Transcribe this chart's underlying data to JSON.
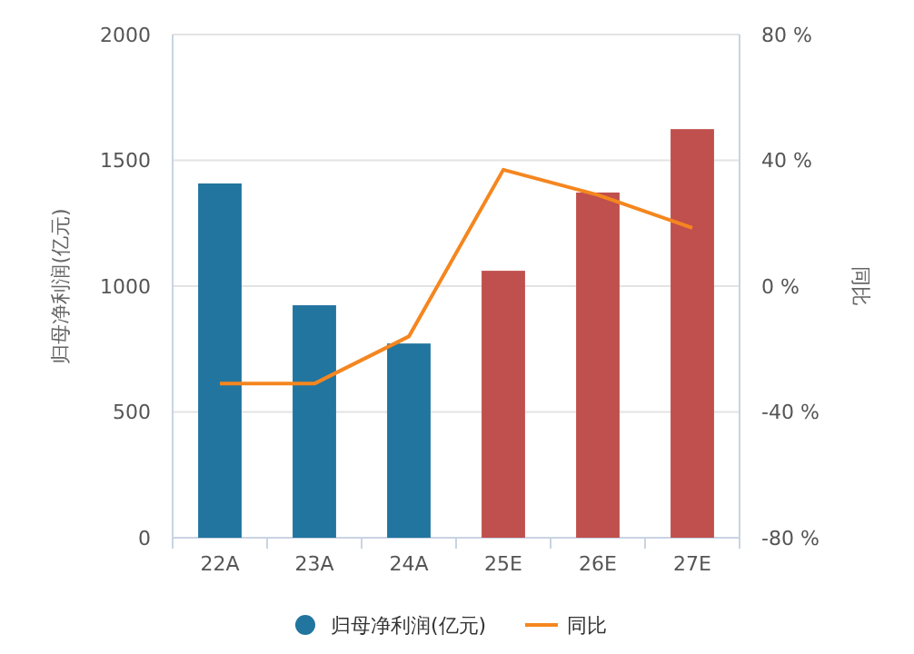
{
  "chart_data": {
    "type": "bar",
    "categories": [
      "22A",
      "23A",
      "24A",
      "25E",
      "26E",
      "27E"
    ],
    "series": [
      {
        "name": "归母净利润(亿元)",
        "color": "#21759f",
        "colors": [
          "#21759f",
          "#21759f",
          "#21759f",
          "#c0504d",
          "#c0504d",
          "#c0504d"
        ],
        "values": [
          1408,
          924,
          772,
          1061,
          1372,
          1624
        ]
      },
      {
        "name": "同比",
        "type": "line",
        "axis": "y2",
        "color": "#f5861f",
        "values": [
          -31,
          -31,
          -16,
          37,
          29,
          18.5
        ]
      }
    ],
    "ylabel": "归母净利润(亿元)",
    "y2label": "同比",
    "ylim": [
      0,
      2000
    ],
    "yticks": [
      0,
      500,
      1000,
      1500,
      2000
    ],
    "y2lim": [
      -80,
      80
    ],
    "y2ticks": [
      {
        "value": -80,
        "label": "-80 %"
      },
      {
        "value": -40,
        "label": "-40 %"
      },
      {
        "value": 0,
        "label": "0 %"
      },
      {
        "value": 40,
        "label": "40 %"
      },
      {
        "value": 80,
        "label": "80 %"
      }
    ],
    "grid": "y",
    "legend": "bottom",
    "marker": "none",
    "line_style": "solid"
  }
}
